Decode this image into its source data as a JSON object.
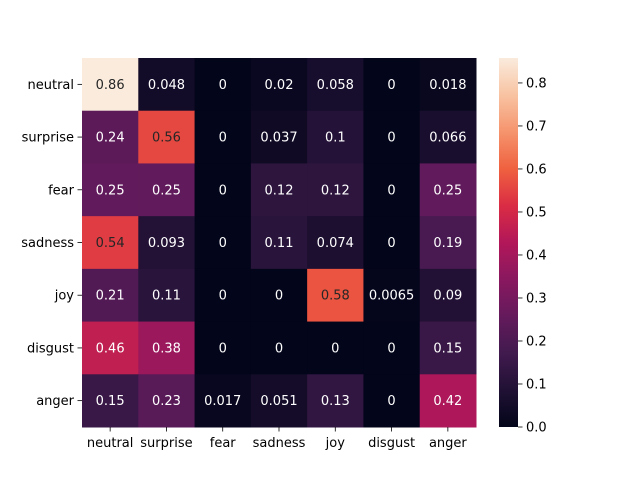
{
  "chart_data": {
    "type": "heatmap",
    "title": "",
    "xlabel": "",
    "ylabel": "",
    "rows": [
      "neutral",
      "surprise",
      "fear",
      "sadness",
      "joy",
      "disgust",
      "anger"
    ],
    "columns": [
      "neutral",
      "surprise",
      "fear",
      "sadness",
      "joy",
      "disgust",
      "anger"
    ],
    "values": [
      [
        0.86,
        0.048,
        0,
        0.02,
        0.058,
        0,
        0.018
      ],
      [
        0.24,
        0.56,
        0,
        0.037,
        0.1,
        0,
        0.066
      ],
      [
        0.25,
        0.25,
        0,
        0.12,
        0.12,
        0,
        0.25
      ],
      [
        0.54,
        0.093,
        0,
        0.11,
        0.074,
        0,
        0.19
      ],
      [
        0.21,
        0.11,
        0,
        0,
        0.58,
        0.0065,
        0.09
      ],
      [
        0.46,
        0.38,
        0,
        0,
        0,
        0,
        0.15
      ],
      [
        0.15,
        0.23,
        0.017,
        0.051,
        0.13,
        0,
        0.42
      ]
    ],
    "labels": [
      [
        "0.86",
        "0.048",
        "0",
        "0.02",
        "0.058",
        "0",
        "0.018"
      ],
      [
        "0.24",
        "0.56",
        "0",
        "0.037",
        "0.1",
        "0",
        "0.066"
      ],
      [
        "0.25",
        "0.25",
        "0",
        "0.12",
        "0.12",
        "0",
        "0.25"
      ],
      [
        "0.54",
        "0.093",
        "0",
        "0.11",
        "0.074",
        "0",
        "0.19"
      ],
      [
        "0.21",
        "0.11",
        "0",
        "0",
        "0.58",
        "0.0065",
        "0.09"
      ],
      [
        "0.46",
        "0.38",
        "0",
        "0",
        "0",
        "0",
        "0.15"
      ],
      [
        "0.15",
        "0.23",
        "0.017",
        "0.051",
        "0.13",
        "0",
        "0.42"
      ]
    ],
    "colormap": "rocket",
    "colorbar": {
      "range": [
        0,
        0.858
      ],
      "ticks": [
        "0.0",
        "0.1",
        "0.2",
        "0.3",
        "0.4",
        "0.5",
        "0.6",
        "0.7",
        "0.8"
      ],
      "tick_values": [
        0,
        0.1,
        0.2,
        0.3,
        0.4,
        0.5,
        0.6,
        0.7,
        0.8
      ]
    },
    "grid": false,
    "legend": "colorbar-right"
  }
}
